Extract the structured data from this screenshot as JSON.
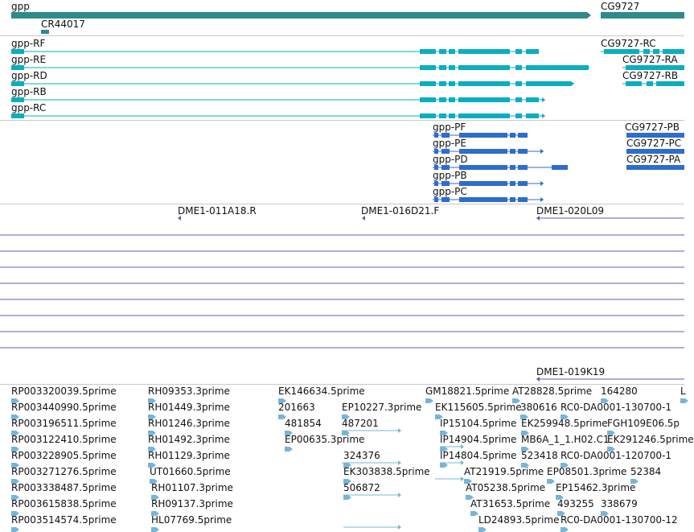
{
  "genes": {
    "labels": [
      "gpp",
      "CR44017",
      "CG9727"
    ],
    "color": "#2e8b8b"
  },
  "transcripts": {
    "labels": [
      "gpp-RF",
      "gpp-RE",
      "gpp-RD",
      "gpp-RB",
      "gpp-RC",
      "CG9727-RC",
      "CG9727-RA",
      "CG9727-RB"
    ],
    "color": "#0aaec0"
  },
  "proteins": {
    "labels": [
      "gpp-PF",
      "gpp-PE",
      "gpp-PD",
      "gpp-PB",
      "gpp-PC",
      "CG9727-PB",
      "CG9727-PC",
      "CG9727-PA"
    ],
    "color": "#2f6bd0"
  },
  "clones": {
    "labels": [
      "DME1-011A18.R",
      "DME1-016D21.F",
      "DME1-020L09",
      "DME1-019K19"
    ],
    "color": "#6a58a8"
  },
  "ests": {
    "labels": [
      "RP003320039.5prime",
      "RP003440990.5prime",
      "RP003196511.5prime",
      "RP003122410.5prime",
      "RP003228905.5prime",
      "RP003271276.5prime",
      "RP003338487.5prime",
      "RP003615838.5prime",
      "RP003514574.5prime",
      "RH09353.3prime",
      "RH01449.3prime",
      "RH01246.3prime",
      "RH01492.3prime",
      "RH01129.3prime",
      "UT01660.5prime",
      "RH01107.3prime",
      "RH09137.3prime",
      "HL07769.5prime",
      "EK146634.5prime",
      "201663",
      "481854",
      "EP00635.3prime",
      "EP10227.3prime",
      "487201",
      "324376",
      "EK303838.5prime",
      "506872",
      "GM18821.5prime",
      "EK115605.5prime",
      "IP15104.5prime",
      "IP14904.5prime",
      "IP14804.5prime",
      "AT21919.5prime",
      "AT05238.5prime",
      "AT31653.5prime",
      "LD24893.5prime",
      "AT28828.5prime",
      "380616",
      "EK259948.5prime",
      "MB6A_1_1.H02.C1",
      "523418",
      "EP08501.3prime",
      "EP15462.3prime",
      "493255",
      "164280",
      "RC0-DA0001-130700-1",
      "FGH109E06.5p",
      "EK291246.5prime",
      "RC0-DA0001-120700-1",
      "52384",
      "338679",
      "RC0-DA0001-130700-12",
      "L"
    ],
    "color": "#78b4d8"
  }
}
